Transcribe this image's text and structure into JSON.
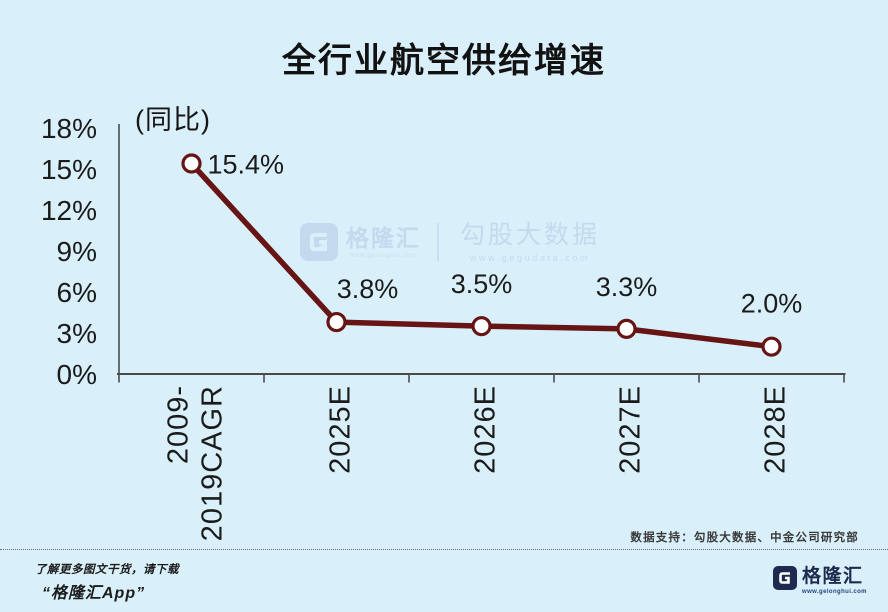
{
  "colors": {
    "background": "#d9f0fa",
    "line": "#671414",
    "marker_fill": "#ffffff",
    "axis": "#4a4a4a",
    "text": "#1b1b1b",
    "watermark": "#c3daee",
    "brand_navy": "#1f2b4e"
  },
  "chart_data": {
    "type": "line",
    "title": "全行业航空供给增速",
    "ylabel": "(同比)",
    "xlabel": "",
    "categories": [
      "2009-2019CAGR",
      "2025E",
      "2026E",
      "2027E",
      "2028E"
    ],
    "x_label_lines": [
      [
        "2009-",
        "2019CAGR"
      ],
      [
        "2025E"
      ],
      [
        "2026E"
      ],
      [
        "2027E"
      ],
      [
        "2028E"
      ]
    ],
    "values": [
      15.4,
      3.8,
      3.5,
      3.3,
      2.0
    ],
    "data_labels": [
      "15.4%",
      "3.8%",
      "3.5%",
      "3.3%",
      "2.0%"
    ],
    "y_ticks": [
      18,
      15,
      12,
      9,
      6,
      3,
      0
    ],
    "y_tick_suffix": "%",
    "ylim": [
      0,
      18
    ],
    "grid": false,
    "legend": "none",
    "line_color": "#671414",
    "marker": "open-circle",
    "marker_fill": "#ffffff"
  },
  "watermark": {
    "brand": "格隆汇",
    "brand_url": "www.gelonghui.com",
    "partner": "勾股大数据",
    "partner_url": "www.gogudata.com"
  },
  "footer": {
    "source": "数据支持：勾股大数据、中金公司研究部",
    "promo_line1": "了解更多图文干货，请下载",
    "promo_line2": "“格隆汇App”",
    "logo_text": "格隆汇",
    "logo_url": "www.gelonghui.com"
  }
}
